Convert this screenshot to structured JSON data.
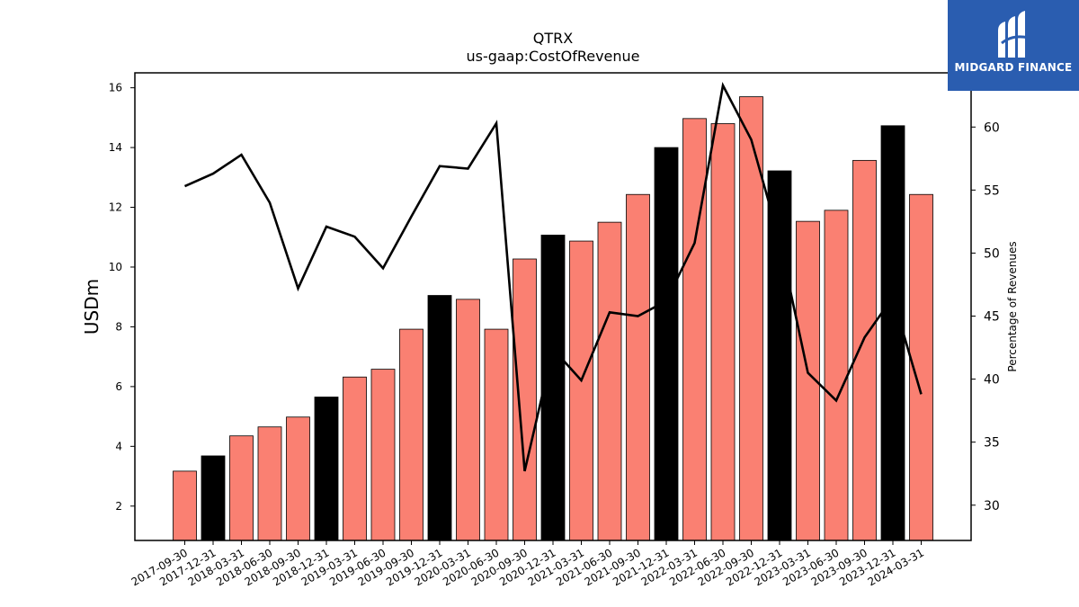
{
  "brand": {
    "name": "MIDGARD FINANCE",
    "color": "#2a5db0"
  },
  "chart_data": {
    "type": "bar",
    "title": "QTRX",
    "subtitle": "us-gaap:CostOfRevenue",
    "ylabel": "USDm",
    "y2label": "Percentage of Revenues",
    "ylim": [
      0.85,
      16.5
    ],
    "y2lim": [
      27.2,
      64.3
    ],
    "yticks": [
      2,
      4,
      6,
      8,
      10,
      12,
      14,
      16
    ],
    "y2ticks": [
      30,
      35,
      40,
      45,
      50,
      55,
      60
    ],
    "categories": [
      "2017-09-30",
      "2017-12-31",
      "2018-03-31",
      "2018-06-30",
      "2018-09-30",
      "2018-12-31",
      "2019-03-31",
      "2019-06-30",
      "2019-09-30",
      "2019-12-31",
      "2020-03-31",
      "2020-06-30",
      "2020-09-30",
      "2020-12-31",
      "2021-03-31",
      "2021-06-30",
      "2021-09-30",
      "2021-12-31",
      "2022-03-31",
      "2022-06-30",
      "2022-09-30",
      "2022-12-31",
      "2023-03-31",
      "2023-06-30",
      "2023-09-30",
      "2023-12-31",
      "2024-03-31"
    ],
    "series": [
      {
        "kind": "bar",
        "values": [
          3.17,
          3.68,
          4.35,
          4.65,
          4.98,
          5.65,
          6.32,
          6.58,
          7.92,
          9.05,
          8.92,
          7.92,
          10.27,
          11.07,
          10.87,
          11.5,
          12.43,
          14.0,
          14.97,
          14.8,
          15.7,
          13.22,
          11.53,
          11.9,
          13.57,
          14.73,
          12.43
        ],
        "colors": [
          "#fa8072",
          "#000000",
          "#fa8072",
          "#fa8072",
          "#fa8072",
          "#000000",
          "#fa8072",
          "#fa8072",
          "#fa8072",
          "#000000",
          "#fa8072",
          "#fa8072",
          "#fa8072",
          "#000000",
          "#fa8072",
          "#fa8072",
          "#fa8072",
          "#000000",
          "#fa8072",
          "#fa8072",
          "#fa8072",
          "#000000",
          "#fa8072",
          "#fa8072",
          "#fa8072",
          "#000000",
          "#fa8072"
        ]
      },
      {
        "kind": "line",
        "axis": "right",
        "color": "#000000",
        "values": [
          55.3,
          56.3,
          57.8,
          54.0,
          47.2,
          52.1,
          51.3,
          48.8,
          52.9,
          56.9,
          56.7,
          60.3,
          32.7,
          42.4,
          39.9,
          45.3,
          45.0,
          46.2,
          50.8,
          63.3,
          59.0,
          51.0,
          40.5,
          38.3,
          43.3,
          46.5,
          38.8
        ]
      }
    ],
    "grid": false,
    "legend": "none"
  }
}
